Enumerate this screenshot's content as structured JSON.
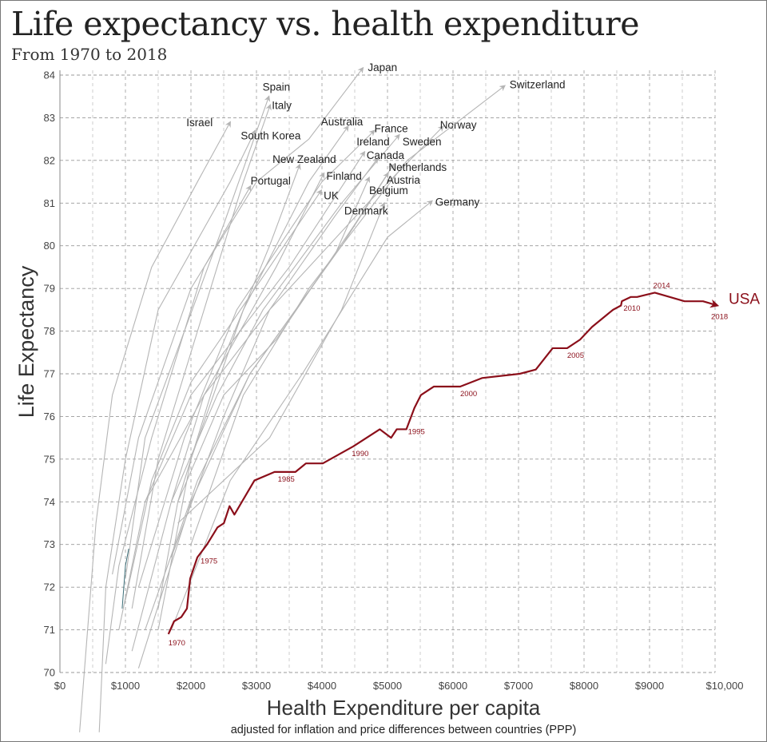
{
  "chart_data": {
    "type": "line",
    "title": "Life expectancy vs. health expenditure",
    "subtitle": "From 1970 to 2018",
    "xlabel": "Health Expenditure per capita",
    "xlabel_note": "adjusted for inflation and price differences between countries (PPP)",
    "ylabel": "Life Expectancy",
    "xlim": [
      0,
      10000
    ],
    "ylim": [
      70,
      84
    ],
    "x_ticks": [
      0,
      1000,
      2000,
      3000,
      4000,
      5000,
      6000,
      7000,
      8000,
      9000,
      10000
    ],
    "x_tick_labels": [
      "$0",
      "$1000",
      "$2000",
      "$3000",
      "$4000",
      "$5000",
      "$6000",
      "$7000",
      "$8000",
      "$9000",
      "$10,000"
    ],
    "y_ticks": [
      70,
      71,
      72,
      73,
      74,
      75,
      76,
      77,
      78,
      79,
      80,
      81,
      82,
      83,
      84
    ],
    "y_tick_labels": [
      "70",
      "71",
      "72",
      "73",
      "74",
      "75",
      "76",
      "77",
      "78",
      "79",
      "80",
      "81",
      "82",
      "83",
      "84"
    ],
    "grid": true,
    "grid_style": "dashed",
    "colors": {
      "usa": "#8b0f1a",
      "other": "#b5b5b5",
      "teal": "#3b6e78",
      "grid": "#999999"
    },
    "highlight": {
      "name": "USA",
      "points": [
        [
          1656,
          70.9
        ],
        [
          1742,
          71.2
        ],
        [
          1853,
          71.3
        ],
        [
          1939,
          71.5
        ],
        [
          1988,
          72.2
        ],
        [
          2098,
          72.7
        ],
        [
          2245,
          73.0
        ],
        [
          2405,
          73.4
        ],
        [
          2503,
          73.5
        ],
        [
          2589,
          73.9
        ],
        [
          2663,
          73.7
        ],
        [
          2969,
          74.5
        ],
        [
          3276,
          74.7
        ],
        [
          3595,
          74.7
        ],
        [
          3755,
          74.9
        ],
        [
          4012,
          74.9
        ],
        [
          4479,
          75.3
        ],
        [
          4883,
          75.7
        ],
        [
          5055,
          75.5
        ],
        [
          5141,
          75.7
        ],
        [
          5288,
          75.7
        ],
        [
          5411,
          76.2
        ],
        [
          5509,
          76.5
        ],
        [
          5706,
          76.7
        ],
        [
          6110,
          76.7
        ],
        [
          6442,
          76.9
        ],
        [
          7018,
          77.0
        ],
        [
          7264,
          77.1
        ],
        [
          7521,
          77.6
        ],
        [
          7742,
          77.6
        ],
        [
          7939,
          77.8
        ],
        [
          8123,
          78.1
        ],
        [
          8442,
          78.5
        ],
        [
          8564,
          78.6
        ],
        [
          8577,
          78.7
        ],
        [
          8712,
          78.8
        ],
        [
          8810,
          78.8
        ],
        [
          9080,
          78.9
        ],
        [
          9534,
          78.7
        ],
        [
          9816,
          78.7
        ],
        [
          10037,
          78.6
        ]
      ],
      "year_labels": [
        {
          "year": "1970",
          "x": 1656,
          "y": 70.9
        },
        {
          "year": "1975",
          "x": 2098,
          "y": 72.7
        },
        {
          "year": "1985",
          "x": 3276,
          "y": 74.7
        },
        {
          "year": "1990",
          "x": 4479,
          "y": 75.3
        },
        {
          "year": "1995",
          "x": 5288,
          "y": 75.7
        },
        {
          "year": "2000",
          "x": 6110,
          "y": 76.7
        },
        {
          "year": "2005",
          "x": 7742,
          "y": 77.6
        },
        {
          "year": "2010",
          "x": 8577,
          "y": 78.7
        },
        {
          "year": "2014",
          "x": 9080,
          "y": 78.9
        },
        {
          "year": "2018",
          "x": 10037,
          "y": 78.6
        }
      ]
    },
    "series": [
      {
        "name": "Japan",
        "points": [
          [
            800,
            72.3
          ],
          [
            1200,
            75.5
          ],
          [
            2000,
            79
          ],
          [
            3000,
            81.5
          ],
          [
            3800,
            82.5
          ],
          [
            4626,
            84.17
          ]
        ]
      },
      {
        "name": "Spain",
        "points": [
          [
            1000,
            72.2
          ],
          [
            1300,
            75.5
          ],
          [
            1900,
            78
          ],
          [
            2500,
            80.5
          ],
          [
            3190,
            83.5
          ]
        ]
      },
      {
        "name": "Italy",
        "points": [
          [
            1100,
            71.5
          ],
          [
            1500,
            75
          ],
          [
            2200,
            78.5
          ],
          [
            2800,
            81.5
          ],
          [
            3210,
            83.3
          ]
        ]
      },
      {
        "name": "Israel",
        "points": [
          [
            300,
            68.6
          ],
          [
            550,
            73.5
          ],
          [
            800,
            76.5
          ],
          [
            1400,
            79.5
          ],
          [
            2100,
            81.5
          ],
          [
            2600,
            82.9
          ]
        ]
      },
      {
        "name": "South Korea",
        "points": [
          [
            600,
            68.6
          ],
          [
            700,
            72
          ],
          [
            1000,
            75
          ],
          [
            1500,
            78.5
          ],
          [
            2600,
            81.5
          ],
          [
            2980,
            82.7
          ]
        ]
      },
      {
        "name": "Australia",
        "points": [
          [
            1500,
            71
          ],
          [
            2000,
            75
          ],
          [
            2800,
            78.5
          ],
          [
            3800,
            81.5
          ],
          [
            4400,
            82.8
          ]
        ]
      },
      {
        "name": "France",
        "points": [
          [
            1200,
            72
          ],
          [
            1900,
            75.5
          ],
          [
            2700,
            78.5
          ],
          [
            4000,
            81.5
          ],
          [
            4800,
            82.7
          ]
        ]
      },
      {
        "name": "Norway",
        "points": [
          [
            1300,
            74
          ],
          [
            2200,
            76.5
          ],
          [
            3200,
            78.5
          ],
          [
            4700,
            81
          ],
          [
            5850,
            82.8
          ]
        ]
      },
      {
        "name": "Switzerland",
        "points": [
          [
            2000,
            73
          ],
          [
            2800,
            76.5
          ],
          [
            3800,
            79
          ],
          [
            5300,
            82
          ],
          [
            6790,
            83.75
          ]
        ]
      },
      {
        "name": "Sweden",
        "points": [
          [
            1700,
            74
          ],
          [
            2400,
            76.5
          ],
          [
            3100,
            78.5
          ],
          [
            4300,
            81
          ],
          [
            5180,
            82.6
          ]
        ]
      },
      {
        "name": "Ireland",
        "points": [
          [
            900,
            71
          ],
          [
            1300,
            74
          ],
          [
            2000,
            76.5
          ],
          [
            3500,
            79.5
          ],
          [
            4650,
            82.2
          ]
        ]
      },
      {
        "name": "Canada",
        "points": [
          [
            1700,
            72.7
          ],
          [
            2500,
            76
          ],
          [
            3200,
            78.5
          ],
          [
            4200,
            80.7
          ],
          [
            4850,
            82.05
          ]
        ]
      },
      {
        "name": "New Zealand",
        "points": [
          [
            1500,
            71.5
          ],
          [
            1800,
            74
          ],
          [
            2400,
            77
          ],
          [
            3200,
            80
          ],
          [
            3660,
            81.9
          ]
        ]
      },
      {
        "name": "Finland",
        "points": [
          [
            1100,
            70.5
          ],
          [
            1700,
            74
          ],
          [
            2200,
            76.5
          ],
          [
            3300,
            79.5
          ],
          [
            4030,
            81.7
          ]
        ]
      },
      {
        "name": "Portugal",
        "points": [
          [
            700,
            70.2
          ],
          [
            900,
            72.5
          ],
          [
            1400,
            75.5
          ],
          [
            2200,
            79.5
          ],
          [
            2910,
            81.4
          ]
        ]
      },
      {
        "name": "UK",
        "points": [
          [
            1000,
            71.7
          ],
          [
            1400,
            74.5
          ],
          [
            2000,
            76.8
          ],
          [
            3200,
            79.5
          ],
          [
            3990,
            81.3
          ]
        ]
      },
      {
        "name": "Netherlands",
        "points": [
          [
            1800,
            74
          ],
          [
            2500,
            76.5
          ],
          [
            3300,
            77.8
          ],
          [
            4500,
            80.5
          ],
          [
            5090,
            81.9
          ]
        ]
      },
      {
        "name": "Austria",
        "points": [
          [
            1200,
            70.1
          ],
          [
            2000,
            74
          ],
          [
            2900,
            77
          ],
          [
            4300,
            80
          ],
          [
            5010,
            81.7
          ]
        ]
      },
      {
        "name": "Belgium",
        "points": [
          [
            1300,
            71
          ],
          [
            2100,
            74.5
          ],
          [
            2900,
            77
          ],
          [
            4200,
            79.8
          ],
          [
            4720,
            81.6
          ]
        ]
      },
      {
        "name": "Germany",
        "points": [
          [
            1700,
            71
          ],
          [
            2600,
            74.5
          ],
          [
            3700,
            77
          ],
          [
            5000,
            80.2
          ],
          [
            5680,
            81.05
          ]
        ]
      },
      {
        "name": "Denmark",
        "points": [
          [
            1800,
            73.5
          ],
          [
            2500,
            74.5
          ],
          [
            3200,
            75.5
          ],
          [
            4300,
            78.5
          ],
          [
            4950,
            81
          ]
        ]
      }
    ],
    "extra_line": {
      "points": [
        [
          950,
          71.5
        ],
        [
          1000,
          72.5
        ],
        [
          1050,
          72.9
        ]
      ]
    }
  }
}
